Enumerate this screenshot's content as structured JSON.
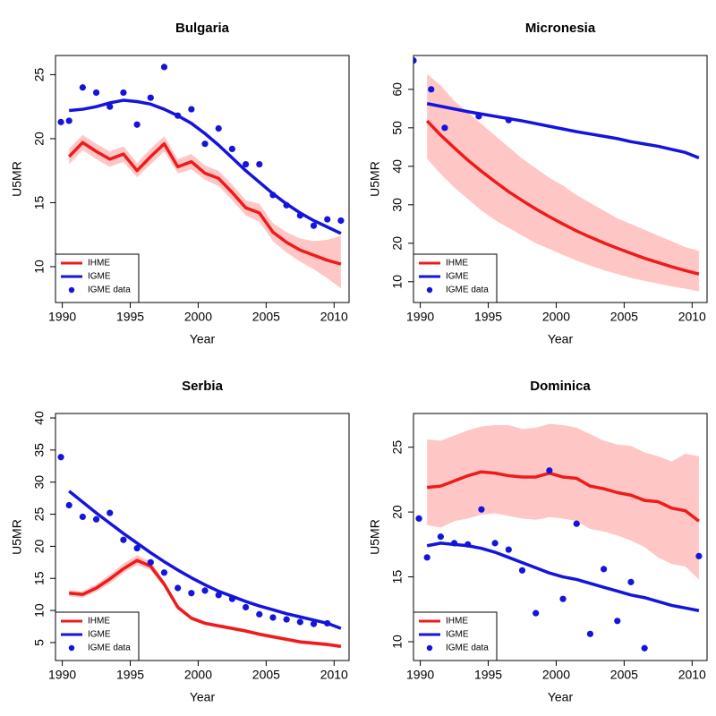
{
  "chart_data": [
    {
      "type": "line",
      "title": "Bulgaria",
      "x_label": "Year",
      "y_label": "U5MR",
      "legend": "bottom-left",
      "band_color": "#ffc6c6",
      "xlim": [
        1989.5,
        2011.1
      ],
      "xticks": [
        1990,
        1995,
        2000,
        2005,
        2010
      ],
      "ylim": [
        7.2,
        26.5
      ],
      "yticks": [
        10,
        15,
        20,
        25
      ],
      "x": [
        1990.5,
        1991.5,
        1992.5,
        1993.5,
        1994.5,
        1995.5,
        1996.5,
        1997.5,
        1998.5,
        1999.5,
        2000.5,
        2001.5,
        2002.5,
        2003.5,
        2004.5,
        2005.5,
        2006.5,
        2007.5,
        2008.5,
        2009.5,
        2010.5
      ],
      "series": [
        {
          "name": "IHME",
          "color": "#ee1b1b",
          "values": [
            18.6,
            19.7,
            19.0,
            18.4,
            18.8,
            17.5,
            18.6,
            19.6,
            17.8,
            18.2,
            17.3,
            16.9,
            15.8,
            14.6,
            14.2,
            12.7,
            11.9,
            11.3,
            10.9,
            10.5,
            10.2
          ],
          "lower": [
            18.0,
            19.1,
            18.4,
            17.8,
            18.2,
            17.0,
            18.0,
            19.0,
            17.3,
            17.6,
            16.8,
            16.3,
            15.2,
            14.0,
            13.5,
            12.0,
            11.1,
            10.4,
            9.8,
            9.1,
            8.3
          ],
          "upper": [
            19.2,
            20.3,
            19.6,
            19.0,
            19.4,
            18.1,
            19.2,
            20.2,
            18.4,
            18.8,
            17.9,
            17.5,
            16.4,
            15.2,
            14.9,
            13.4,
            12.7,
            12.2,
            12.0,
            12.1,
            12.4
          ]
        },
        {
          "name": "IGME",
          "color": "#1414dc",
          "values": [
            22.2,
            22.3,
            22.5,
            22.8,
            23.0,
            22.9,
            22.7,
            22.3,
            21.8,
            21.2,
            20.4,
            19.5,
            18.5,
            17.5,
            16.6,
            15.7,
            14.9,
            14.2,
            13.6,
            13.1,
            12.6
          ]
        },
        {
          "name": "IGME data",
          "color": "#1414dc",
          "style": "points",
          "x": [
            1989.9,
            1990.5,
            1991.5,
            1992.5,
            1993.5,
            1994.5,
            1995.5,
            1996.5,
            1997.5,
            1998.5,
            1999.5,
            2000.5,
            2001.5,
            2002.5,
            2003.5,
            2004.5,
            2005.5,
            2006.5,
            2007.5,
            2008.5,
            2009.5,
            2010.5
          ],
          "values": [
            21.3,
            21.4,
            24.0,
            23.6,
            22.5,
            23.6,
            21.1,
            23.2,
            25.6,
            21.8,
            22.3,
            19.6,
            20.8,
            19.2,
            18.0,
            18.0,
            15.6,
            14.8,
            14.0,
            13.2,
            13.7,
            13.6
          ]
        }
      ]
    },
    {
      "type": "line",
      "title": "Micronesia",
      "x_label": "Year",
      "y_label": "U5MR",
      "legend": "bottom-left",
      "band_color": "#ffc6c6",
      "xlim": [
        1989.5,
        2011.1
      ],
      "xticks": [
        1990,
        1995,
        2000,
        2005,
        2010
      ],
      "ylim": [
        4.6,
        68.8
      ],
      "yticks": [
        10,
        20,
        30,
        40,
        50,
        60
      ],
      "x": [
        1990.5,
        1991.5,
        1992.5,
        1993.5,
        1994.5,
        1995.5,
        1996.5,
        1997.5,
        1998.5,
        1999.5,
        2000.5,
        2001.5,
        2002.5,
        2003.5,
        2004.5,
        2005.5,
        2006.5,
        2007.5,
        2008.5,
        2009.5,
        2010.5
      ],
      "series": [
        {
          "name": "IHME",
          "color": "#ee1b1b",
          "values": [
            51.8,
            48.1,
            44.8,
            41.6,
            38.7,
            36.0,
            33.4,
            31.1,
            28.9,
            26.9,
            25.0,
            23.2,
            21.6,
            20.1,
            18.7,
            17.4,
            16.1,
            15.0,
            13.9,
            12.9,
            12.0
          ],
          "lower": [
            42,
            38,
            34.5,
            31.5,
            28.5,
            26,
            24,
            22,
            20,
            18.5,
            17,
            15.5,
            14.2,
            13,
            12,
            11,
            10.2,
            9.5,
            8.8,
            8.2,
            7.5
          ],
          "upper": [
            64,
            61,
            57,
            54,
            51,
            48,
            45,
            42,
            39.5,
            37,
            35,
            32.5,
            30.5,
            28.5,
            26.5,
            25,
            23.5,
            22,
            20.5,
            19,
            18
          ]
        },
        {
          "name": "IGME",
          "color": "#1414dc",
          "values": [
            56.3,
            55.6,
            54.9,
            54.2,
            53.6,
            53.0,
            52.4,
            51.8,
            51.1,
            50.4,
            49.7,
            49.0,
            48.4,
            47.8,
            47.2,
            46.4,
            45.8,
            45.2,
            44.4,
            43.6,
            42.2
          ]
        },
        {
          "name": "IGME data",
          "color": "#1414dc",
          "style": "points",
          "x": [
            1989.5,
            1990.8,
            1991.8,
            1994.3,
            1996.5
          ],
          "values": [
            67.5,
            60,
            50,
            53,
            52
          ]
        }
      ]
    },
    {
      "type": "line",
      "title": "Serbia",
      "x_label": "Year",
      "y_label": "U5MR",
      "legend": "bottom-left",
      "band_color": "#ffc6c6",
      "xlim": [
        1989.5,
        2011.1
      ],
      "xticks": [
        1990,
        1995,
        2000,
        2005,
        2010
      ],
      "ylim": [
        2.2,
        40.7
      ],
      "yticks": [
        5,
        10,
        15,
        20,
        25,
        30,
        35,
        40
      ],
      "x": [
        1990.5,
        1991.5,
        1992.5,
        1993.5,
        1994.5,
        1995.5,
        1996.5,
        1997.5,
        1998.5,
        1999.5,
        2000.5,
        2001.5,
        2002.5,
        2003.5,
        2004.5,
        2005.5,
        2006.5,
        2007.5,
        2008.5,
        2009.5,
        2010.5
      ],
      "series": [
        {
          "name": "IHME",
          "color": "#ee1b1b",
          "values": [
            12.7,
            12.5,
            13.5,
            14.9,
            16.5,
            17.8,
            16.9,
            14.1,
            10.5,
            8.8,
            8.0,
            7.6,
            7.2,
            6.8,
            6.3,
            5.9,
            5.5,
            5.1,
            4.9,
            4.7,
            4.4
          ],
          "lower": [
            12.2,
            12.0,
            12.9,
            14.2,
            15.8,
            17.1,
            16.3,
            13.6,
            10.1,
            8.5,
            7.7,
            7.3,
            6.9,
            6.5,
            6.0,
            5.6,
            5.2,
            4.8,
            4.6,
            4.4,
            4.1
          ],
          "upper": [
            13.2,
            13.0,
            14.1,
            15.6,
            17.3,
            18.6,
            17.6,
            14.6,
            10.9,
            9.1,
            8.3,
            7.9,
            7.5,
            7.1,
            6.6,
            6.2,
            5.8,
            5.4,
            5.2,
            5.0,
            4.7
          ]
        },
        {
          "name": "IGME",
          "color": "#1414dc",
          "values": [
            28.6,
            26.9,
            25.2,
            23.6,
            22.0,
            20.5,
            19.0,
            17.6,
            16.3,
            15.1,
            14.0,
            13.0,
            12.2,
            11.4,
            10.7,
            10.1,
            9.5,
            9.0,
            8.5,
            8.0,
            7.2
          ]
        },
        {
          "name": "IGME data",
          "color": "#1414dc",
          "style": "points",
          "x": [
            1989.9,
            1990.5,
            1991.5,
            1992.5,
            1993.5,
            1994.5,
            1995.5,
            1996.5,
            1997.5,
            1998.5,
            1999.5,
            2000.5,
            2001.5,
            2002.5,
            2003.5,
            2004.5,
            2005.5,
            2006.5,
            2007.5,
            2008.5,
            2009.5
          ],
          "values": [
            33.9,
            26.4,
            24.6,
            24.2,
            25.2,
            21.0,
            19.7,
            17.5,
            15.9,
            13.5,
            12.7,
            13.1,
            12.4,
            11.8,
            10.5,
            9.4,
            8.9,
            8.6,
            8.2,
            7.9,
            8.0
          ]
        }
      ]
    },
    {
      "type": "line",
      "title": "Dominica",
      "x_label": "Year",
      "y_label": "U5MR",
      "legend": "bottom-left",
      "band_color": "#ffc6c6",
      "xlim": [
        1989.5,
        2011.1
      ],
      "xticks": [
        1990,
        1995,
        2000,
        2005,
        2010
      ],
      "ylim": [
        8.55,
        27.6
      ],
      "yticks": [
        10,
        15,
        20,
        25
      ],
      "x": [
        1990.5,
        1991.5,
        1992.5,
        1993.5,
        1994.5,
        1995.5,
        1996.5,
        1997.5,
        1998.5,
        1999.5,
        2000.5,
        2001.5,
        2002.5,
        2003.5,
        2004.5,
        2005.5,
        2006.5,
        2007.5,
        2008.5,
        2009.5,
        2010.5
      ],
      "series": [
        {
          "name": "IHME",
          "color": "#ee1b1b",
          "values": [
            21.9,
            22.0,
            22.4,
            22.8,
            23.1,
            23.0,
            22.8,
            22.7,
            22.7,
            23.0,
            22.7,
            22.6,
            22.0,
            21.8,
            21.5,
            21.3,
            20.9,
            20.8,
            20.3,
            20.1,
            19.3
          ],
          "lower": [
            19.0,
            18.8,
            19.3,
            19.5,
            19.8,
            19.9,
            19.7,
            19.5,
            19.4,
            19.6,
            19.5,
            19.3,
            18.7,
            18.5,
            18.2,
            17.8,
            17.3,
            16.5,
            16.0,
            15.8,
            14.8
          ],
          "upper": [
            25.6,
            25.5,
            25.9,
            26.3,
            26.6,
            26.7,
            26.7,
            26.4,
            26.5,
            26.8,
            26.7,
            26.5,
            26.0,
            25.5,
            25.2,
            25.1,
            24.6,
            24.3,
            23.9,
            24.5,
            24.3
          ]
        },
        {
          "name": "IGME",
          "color": "#1414dc",
          "values": [
            17.4,
            17.6,
            17.5,
            17.4,
            17.2,
            16.9,
            16.5,
            16.1,
            15.7,
            15.3,
            15.0,
            14.8,
            14.5,
            14.2,
            13.9,
            13.6,
            13.4,
            13.1,
            12.8,
            12.6,
            12.4
          ]
        },
        {
          "name": "IGME data",
          "color": "#1414dc",
          "style": "points",
          "x": [
            1989.9,
            1990.5,
            1991.5,
            1992.5,
            1993.5,
            1994.5,
            1995.5,
            1996.5,
            1997.5,
            1998.5,
            1999.5,
            2000.5,
            2001.5,
            2002.5,
            2003.5,
            2004.5,
            2005.5,
            2006.5,
            2010.5
          ],
          "values": [
            19.5,
            16.5,
            18.1,
            17.6,
            17.5,
            20.2,
            17.6,
            17.1,
            15.5,
            12.2,
            23.2,
            13.3,
            19.1,
            10.6,
            15.6,
            11.6,
            14.6,
            9.5,
            16.6
          ]
        }
      ]
    }
  ]
}
